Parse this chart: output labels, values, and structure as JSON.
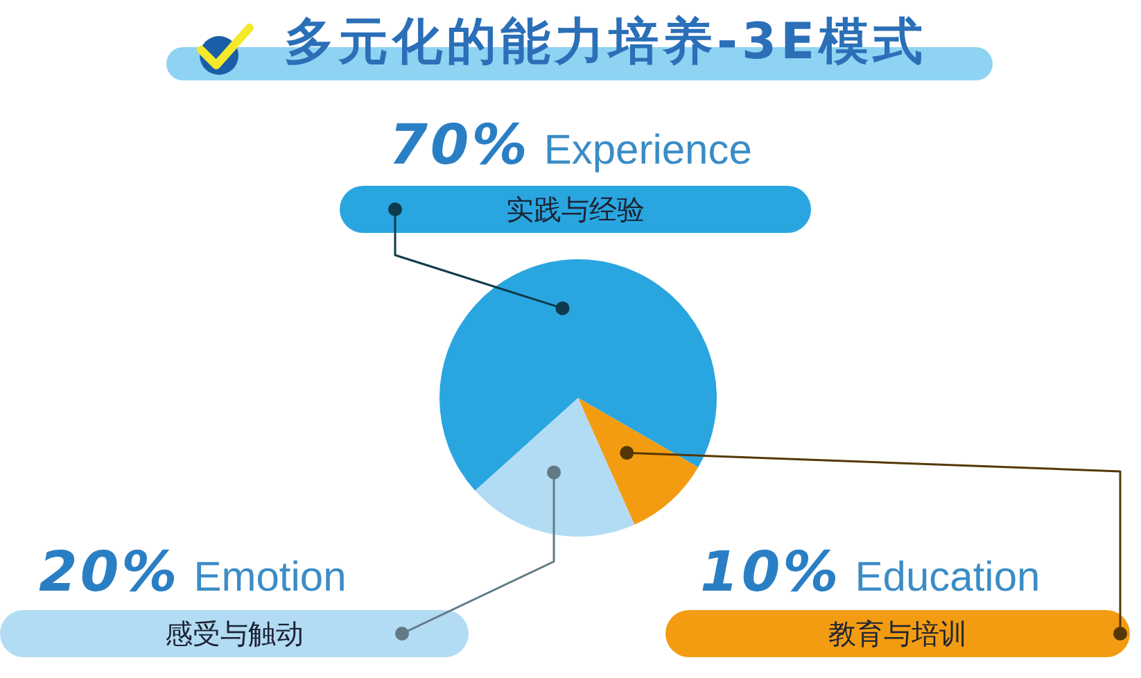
{
  "chart_data": {
    "type": "pie",
    "title": "多元化的能力培养-3E模式",
    "categories": [
      "Experience",
      "Emotion",
      "Education"
    ],
    "values": [
      70,
      20,
      10
    ],
    "colors": [
      "#29a6e0",
      "#b2dcf4",
      "#f39c12"
    ],
    "value_labels": [
      "70%",
      "20%",
      "10%"
    ],
    "annotations": [
      "实践与经验",
      "感受与触动",
      "教育与培训"
    ]
  }
}
